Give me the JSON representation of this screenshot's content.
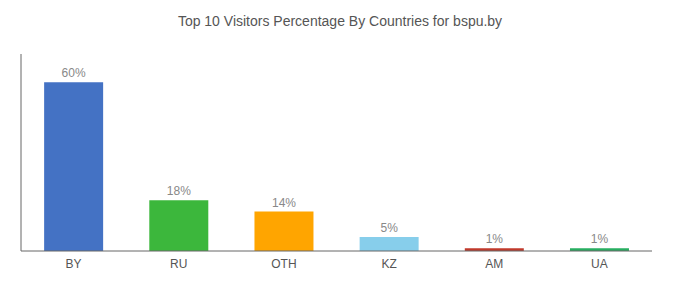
{
  "chart_data": {
    "type": "bar",
    "title": "Top 10 Visitors Percentage By Countries for bspu.by",
    "categories": [
      "BY",
      "RU",
      "OTH",
      "KZ",
      "AM",
      "UA"
    ],
    "values": [
      60,
      18,
      14,
      5,
      1,
      1
    ],
    "value_labels": [
      "60%",
      "18%",
      "14%",
      "5%",
      "1%",
      "1%"
    ],
    "colors": [
      "#4472C4",
      "#3CB73C",
      "#FFA500",
      "#87CEEB",
      "#C0392B",
      "#27AE60"
    ],
    "ylim": [
      0,
      70
    ],
    "data_labels": true,
    "tick_labels": "x",
    "grid": false
  }
}
